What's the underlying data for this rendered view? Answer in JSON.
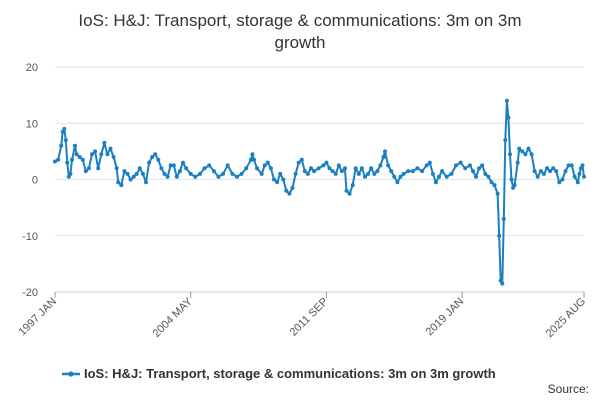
{
  "chart_data": {
    "type": "line",
    "title_line1": "IoS: H&J: Transport, storage & communications: 3m on 3m",
    "title_line2": "growth",
    "x_start": "1997-01",
    "x_end": "2025-08",
    "x_ticks": [
      {
        "date": "1997-01",
        "label": "1997 JAN"
      },
      {
        "date": "2004-05",
        "label": "2004 MAY"
      },
      {
        "date": "2011-09",
        "label": "2011 SEP"
      },
      {
        "date": "2019-01",
        "label": "2019 JAN"
      },
      {
        "date": "2025-08",
        "label": "2025 AUG"
      }
    ],
    "y_ticks": [
      -20,
      -10,
      0,
      10,
      20
    ],
    "ylim": [
      -20,
      20
    ],
    "grid": true,
    "legend_position": "bottom",
    "series": [
      {
        "name": "IoS: H&J: Transport, storage & communications: 3m on 3m growth",
        "color": "#1b7fc0",
        "points": [
          [
            "1997-01",
            3.2
          ],
          [
            "1997-03",
            3.5
          ],
          [
            "1997-05",
            6.0
          ],
          [
            "1997-06",
            8.5
          ],
          [
            "1997-07",
            9.0
          ],
          [
            "1997-08",
            7.0
          ],
          [
            "1997-09",
            3.0
          ],
          [
            "1997-10",
            0.5
          ],
          [
            "1997-11",
            1.0
          ],
          [
            "1997-12",
            3.5
          ],
          [
            "1998-02",
            6.0
          ],
          [
            "1998-03",
            4.5
          ],
          [
            "1998-05",
            4.0
          ],
          [
            "1998-07",
            3.5
          ],
          [
            "1998-09",
            1.5
          ],
          [
            "1998-11",
            2.0
          ],
          [
            "1999-01",
            4.5
          ],
          [
            "1999-03",
            5.0
          ],
          [
            "1999-05",
            2.0
          ],
          [
            "1999-07",
            4.5
          ],
          [
            "1999-09",
            6.5
          ],
          [
            "1999-11",
            4.5
          ],
          [
            "2000-01",
            5.5
          ],
          [
            "2000-03",
            4.0
          ],
          [
            "2000-05",
            2.0
          ],
          [
            "2000-06",
            -0.5
          ],
          [
            "2000-08",
            -1.0
          ],
          [
            "2000-10",
            1.5
          ],
          [
            "2000-12",
            1.0
          ],
          [
            "2001-02",
            0.0
          ],
          [
            "2001-04",
            0.5
          ],
          [
            "2001-06",
            1.0
          ],
          [
            "2001-08",
            2.0
          ],
          [
            "2001-10",
            1.0
          ],
          [
            "2001-12",
            -0.5
          ],
          [
            "2002-02",
            3.0
          ],
          [
            "2002-04",
            4.0
          ],
          [
            "2002-06",
            4.5
          ],
          [
            "2002-08",
            3.5
          ],
          [
            "2002-10",
            2.0
          ],
          [
            "2002-12",
            1.0
          ],
          [
            "2003-02",
            0.5
          ],
          [
            "2003-04",
            2.5
          ],
          [
            "2003-06",
            2.5
          ],
          [
            "2003-08",
            0.5
          ],
          [
            "2003-10",
            1.5
          ],
          [
            "2003-12",
            3.0
          ],
          [
            "2004-02",
            2.0
          ],
          [
            "2004-05",
            1.0
          ],
          [
            "2004-08",
            0.5
          ],
          [
            "2004-11",
            1.0
          ],
          [
            "2005-02",
            2.0
          ],
          [
            "2005-05",
            2.5
          ],
          [
            "2005-08",
            1.5
          ],
          [
            "2005-11",
            0.5
          ],
          [
            "2006-02",
            1.0
          ],
          [
            "2006-05",
            2.5
          ],
          [
            "2006-08",
            1.0
          ],
          [
            "2006-11",
            0.5
          ],
          [
            "2007-02",
            1.0
          ],
          [
            "2007-05",
            2.0
          ],
          [
            "2007-08",
            3.5
          ],
          [
            "2007-09",
            4.5
          ],
          [
            "2007-10",
            3.5
          ],
          [
            "2007-12",
            2.0
          ],
          [
            "2008-03",
            1.0
          ],
          [
            "2008-05",
            2.5
          ],
          [
            "2008-07",
            3.0
          ],
          [
            "2008-09",
            2.0
          ],
          [
            "2008-11",
            0.0
          ],
          [
            "2009-01",
            -0.5
          ],
          [
            "2009-03",
            1.0
          ],
          [
            "2009-05",
            0.0
          ],
          [
            "2009-07",
            -2.0
          ],
          [
            "2009-09",
            -2.5
          ],
          [
            "2009-11",
            -1.5
          ],
          [
            "2010-01",
            1.0
          ],
          [
            "2010-03",
            3.0
          ],
          [
            "2010-05",
            3.5
          ],
          [
            "2010-07",
            1.5
          ],
          [
            "2010-09",
            1.0
          ],
          [
            "2010-11",
            2.0
          ],
          [
            "2011-01",
            1.5
          ],
          [
            "2011-04",
            2.0
          ],
          [
            "2011-07",
            2.5
          ],
          [
            "2011-09",
            3.0
          ],
          [
            "2011-11",
            2.0
          ],
          [
            "2012-01",
            1.5
          ],
          [
            "2012-03",
            1.0
          ],
          [
            "2012-05",
            2.5
          ],
          [
            "2012-07",
            1.5
          ],
          [
            "2012-09",
            2.0
          ],
          [
            "2012-10",
            -2.0
          ],
          [
            "2012-12",
            -2.5
          ],
          [
            "2013-02",
            -1.0
          ],
          [
            "2013-04",
            2.0
          ],
          [
            "2013-06",
            1.0
          ],
          [
            "2013-08",
            2.0
          ],
          [
            "2013-10",
            0.5
          ],
          [
            "2013-12",
            1.0
          ],
          [
            "2014-02",
            2.0
          ],
          [
            "2014-04",
            1.0
          ],
          [
            "2014-06",
            1.5
          ],
          [
            "2014-08",
            2.5
          ],
          [
            "2014-10",
            4.0
          ],
          [
            "2014-11",
            5.0
          ],
          [
            "2015-01",
            2.5
          ],
          [
            "2015-03",
            1.5
          ],
          [
            "2015-05",
            0.5
          ],
          [
            "2015-07",
            -0.5
          ],
          [
            "2015-09",
            0.5
          ],
          [
            "2015-11",
            1.0
          ],
          [
            "2016-02",
            1.5
          ],
          [
            "2016-05",
            1.5
          ],
          [
            "2016-08",
            2.0
          ],
          [
            "2016-11",
            1.5
          ],
          [
            "2017-02",
            2.5
          ],
          [
            "2017-04",
            3.0
          ],
          [
            "2017-06",
            1.0
          ],
          [
            "2017-08",
            -0.5
          ],
          [
            "2017-10",
            0.5
          ],
          [
            "2017-12",
            1.5
          ],
          [
            "2018-03",
            0.5
          ],
          [
            "2018-06",
            1.0
          ],
          [
            "2018-09",
            2.5
          ],
          [
            "2018-12",
            3.0
          ],
          [
            "2019-03",
            2.0
          ],
          [
            "2019-06",
            2.5
          ],
          [
            "2019-08",
            1.5
          ],
          [
            "2019-10",
            0.5
          ],
          [
            "2019-12",
            2.0
          ],
          [
            "2020-02",
            2.5
          ],
          [
            "2020-04",
            1.0
          ],
          [
            "2020-06",
            0.5
          ],
          [
            "2020-08",
            -0.5
          ],
          [
            "2020-10",
            -1.0
          ],
          [
            "2020-12",
            -2.5
          ],
          [
            "2021-01",
            -10.0
          ],
          [
            "2021-02",
            -18.0
          ],
          [
            "2021-03",
            -18.5
          ],
          [
            "2021-04",
            -7.0
          ],
          [
            "2021-05",
            7.0
          ],
          [
            "2021-06",
            14.0
          ],
          [
            "2021-07",
            11.0
          ],
          [
            "2021-08",
            4.5
          ],
          [
            "2021-09",
            0.0
          ],
          [
            "2021-10",
            -1.5
          ],
          [
            "2021-11",
            -1.0
          ],
          [
            "2022-01",
            3.0
          ],
          [
            "2022-02",
            5.5
          ],
          [
            "2022-04",
            5.0
          ],
          [
            "2022-06",
            4.5
          ],
          [
            "2022-08",
            5.5
          ],
          [
            "2022-10",
            4.5
          ],
          [
            "2022-12",
            1.5
          ],
          [
            "2023-02",
            0.5
          ],
          [
            "2023-04",
            1.5
          ],
          [
            "2023-06",
            1.0
          ],
          [
            "2023-08",
            2.0
          ],
          [
            "2023-10",
            1.5
          ],
          [
            "2023-12",
            2.0
          ],
          [
            "2024-02",
            1.5
          ],
          [
            "2024-04",
            -0.5
          ],
          [
            "2024-06",
            0.0
          ],
          [
            "2024-08",
            1.5
          ],
          [
            "2024-10",
            2.5
          ],
          [
            "2024-12",
            2.5
          ],
          [
            "2025-02",
            0.5
          ],
          [
            "2025-04",
            -0.5
          ],
          [
            "2025-05",
            1.0
          ],
          [
            "2025-06",
            2.0
          ],
          [
            "2025-07",
            2.5
          ],
          [
            "2025-08",
            0.5
          ]
        ]
      }
    ],
    "source_label": "Source:"
  }
}
